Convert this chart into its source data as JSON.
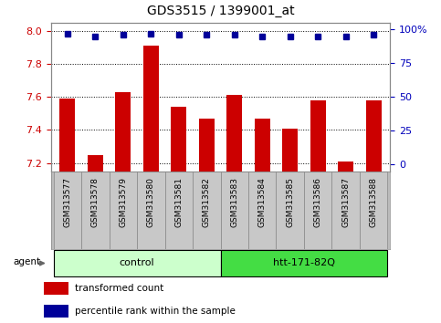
{
  "title": "GDS3515 / 1399001_at",
  "samples": [
    "GSM313577",
    "GSM313578",
    "GSM313579",
    "GSM313580",
    "GSM313581",
    "GSM313582",
    "GSM313583",
    "GSM313584",
    "GSM313585",
    "GSM313586",
    "GSM313587",
    "GSM313588"
  ],
  "transformed_count": [
    7.59,
    7.25,
    7.63,
    7.91,
    7.54,
    7.47,
    7.61,
    7.47,
    7.41,
    7.58,
    7.21,
    7.58
  ],
  "percentile_rank": [
    97,
    95,
    96,
    97,
    96,
    96,
    96,
    95,
    95,
    95,
    95,
    96
  ],
  "ylim_left": [
    7.15,
    8.05
  ],
  "ylim_right": [
    -5,
    105
  ],
  "yticks_left": [
    7.2,
    7.4,
    7.6,
    7.8,
    8.0
  ],
  "yticks_right": [
    0,
    25,
    50,
    75,
    100
  ],
  "groups": [
    {
      "label": "control",
      "indices": [
        0,
        1,
        2,
        3,
        4,
        5
      ],
      "color": "#CCFFCC"
    },
    {
      "label": "htt-171-82Q",
      "indices": [
        6,
        7,
        8,
        9,
        10,
        11
      ],
      "color": "#44DD44"
    }
  ],
  "bar_color": "#CC0000",
  "dot_color": "#000099",
  "bar_width": 0.55,
  "agent_label": "agent",
  "legend_items": [
    {
      "label": "transformed count",
      "color": "#CC0000"
    },
    {
      "label": "percentile rank within the sample",
      "color": "#000099"
    }
  ],
  "tick_label_color_left": "#CC0000",
  "tick_label_color_right": "#0000BB",
  "sample_box_color": "#C8C8C8",
  "group_border_color": "#000000",
  "right_ytick_labels": [
    "0",
    "25",
    "50",
    "75",
    "100%"
  ]
}
